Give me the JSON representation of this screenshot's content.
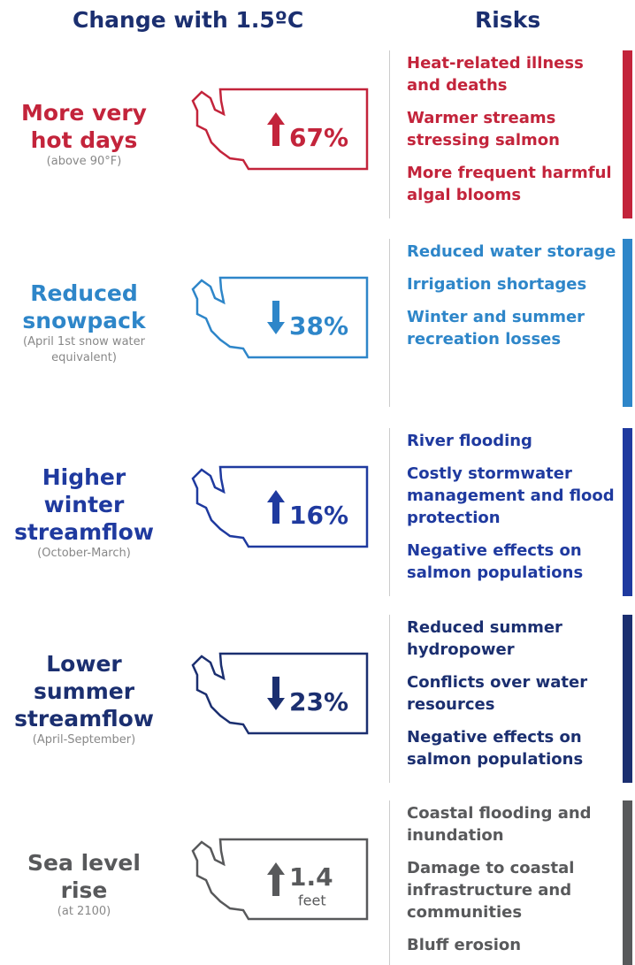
{
  "header": {
    "left": "Change with 1.5ºC",
    "right": "Risks"
  },
  "rows": [
    {
      "title": "More very hot days",
      "subtitle": "(above 90°F)",
      "change": "67%",
      "direction": "up",
      "color": "#c3243b",
      "risks": [
        "Heat-related illness and deaths",
        "Warmer streams stressing salmon",
        "More frequent harmful algal blooms"
      ]
    },
    {
      "title": "Reduced snowpack",
      "subtitle": "(April 1st snow water equivalent)",
      "change": "38%",
      "direction": "down",
      "color": "#2e86c9",
      "risks": [
        "Reduced water storage",
        "Irrigation shortages",
        "Winter and summer recreation losses"
      ]
    },
    {
      "title": "Higher winter streamflow",
      "subtitle": "(October-March)",
      "change": "16%",
      "direction": "up",
      "color": "#1f3a9f",
      "risks": [
        "River flooding",
        "Costly stormwater management and flood protection",
        "Negative effects on salmon populations"
      ]
    },
    {
      "title": "Lower summer streamflow",
      "subtitle": "(April-September)",
      "change": "23%",
      "direction": "down",
      "color": "#1b2f70",
      "risks": [
        "Reduced summer hydropower",
        "Conflicts over water resources",
        "Negative effects on salmon populations"
      ]
    },
    {
      "title": "Sea level rise",
      "subtitle": "(at 2100)",
      "change": "1.4",
      "unit": "feet",
      "direction": "up",
      "color": "#58595b",
      "risks": [
        "Coastal flooding and inundation",
        "Damage to coastal infrastructure and communities",
        "Bluff erosion"
      ]
    }
  ]
}
